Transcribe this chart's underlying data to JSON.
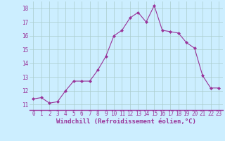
{
  "x": [
    0,
    1,
    2,
    3,
    4,
    5,
    6,
    7,
    8,
    9,
    10,
    11,
    12,
    13,
    14,
    15,
    16,
    17,
    18,
    19,
    20,
    21,
    22,
    23
  ],
  "y": [
    11.4,
    11.5,
    11.1,
    11.2,
    12.0,
    12.7,
    12.7,
    12.7,
    13.5,
    14.5,
    16.0,
    16.4,
    17.3,
    17.7,
    17.0,
    18.2,
    16.4,
    16.3,
    16.2,
    15.5,
    15.1,
    13.1,
    12.2,
    12.2
  ],
  "line_color": "#993399",
  "marker": "D",
  "marker_size": 2.0,
  "xlabel": "Windchill (Refroidissement éolien,°C)",
  "ylabel_ticks": [
    11,
    12,
    13,
    14,
    15,
    16,
    17,
    18
  ],
  "xlim": [
    -0.5,
    23.5
  ],
  "ylim": [
    10.6,
    18.5
  ],
  "bg_color": "#cceeff",
  "grid_color": "#aacccc",
  "line_color_axis": "#993399",
  "tick_color": "#993399",
  "font_family": "monospace",
  "tick_fontsize": 5.5,
  "xlabel_fontsize": 6.5
}
